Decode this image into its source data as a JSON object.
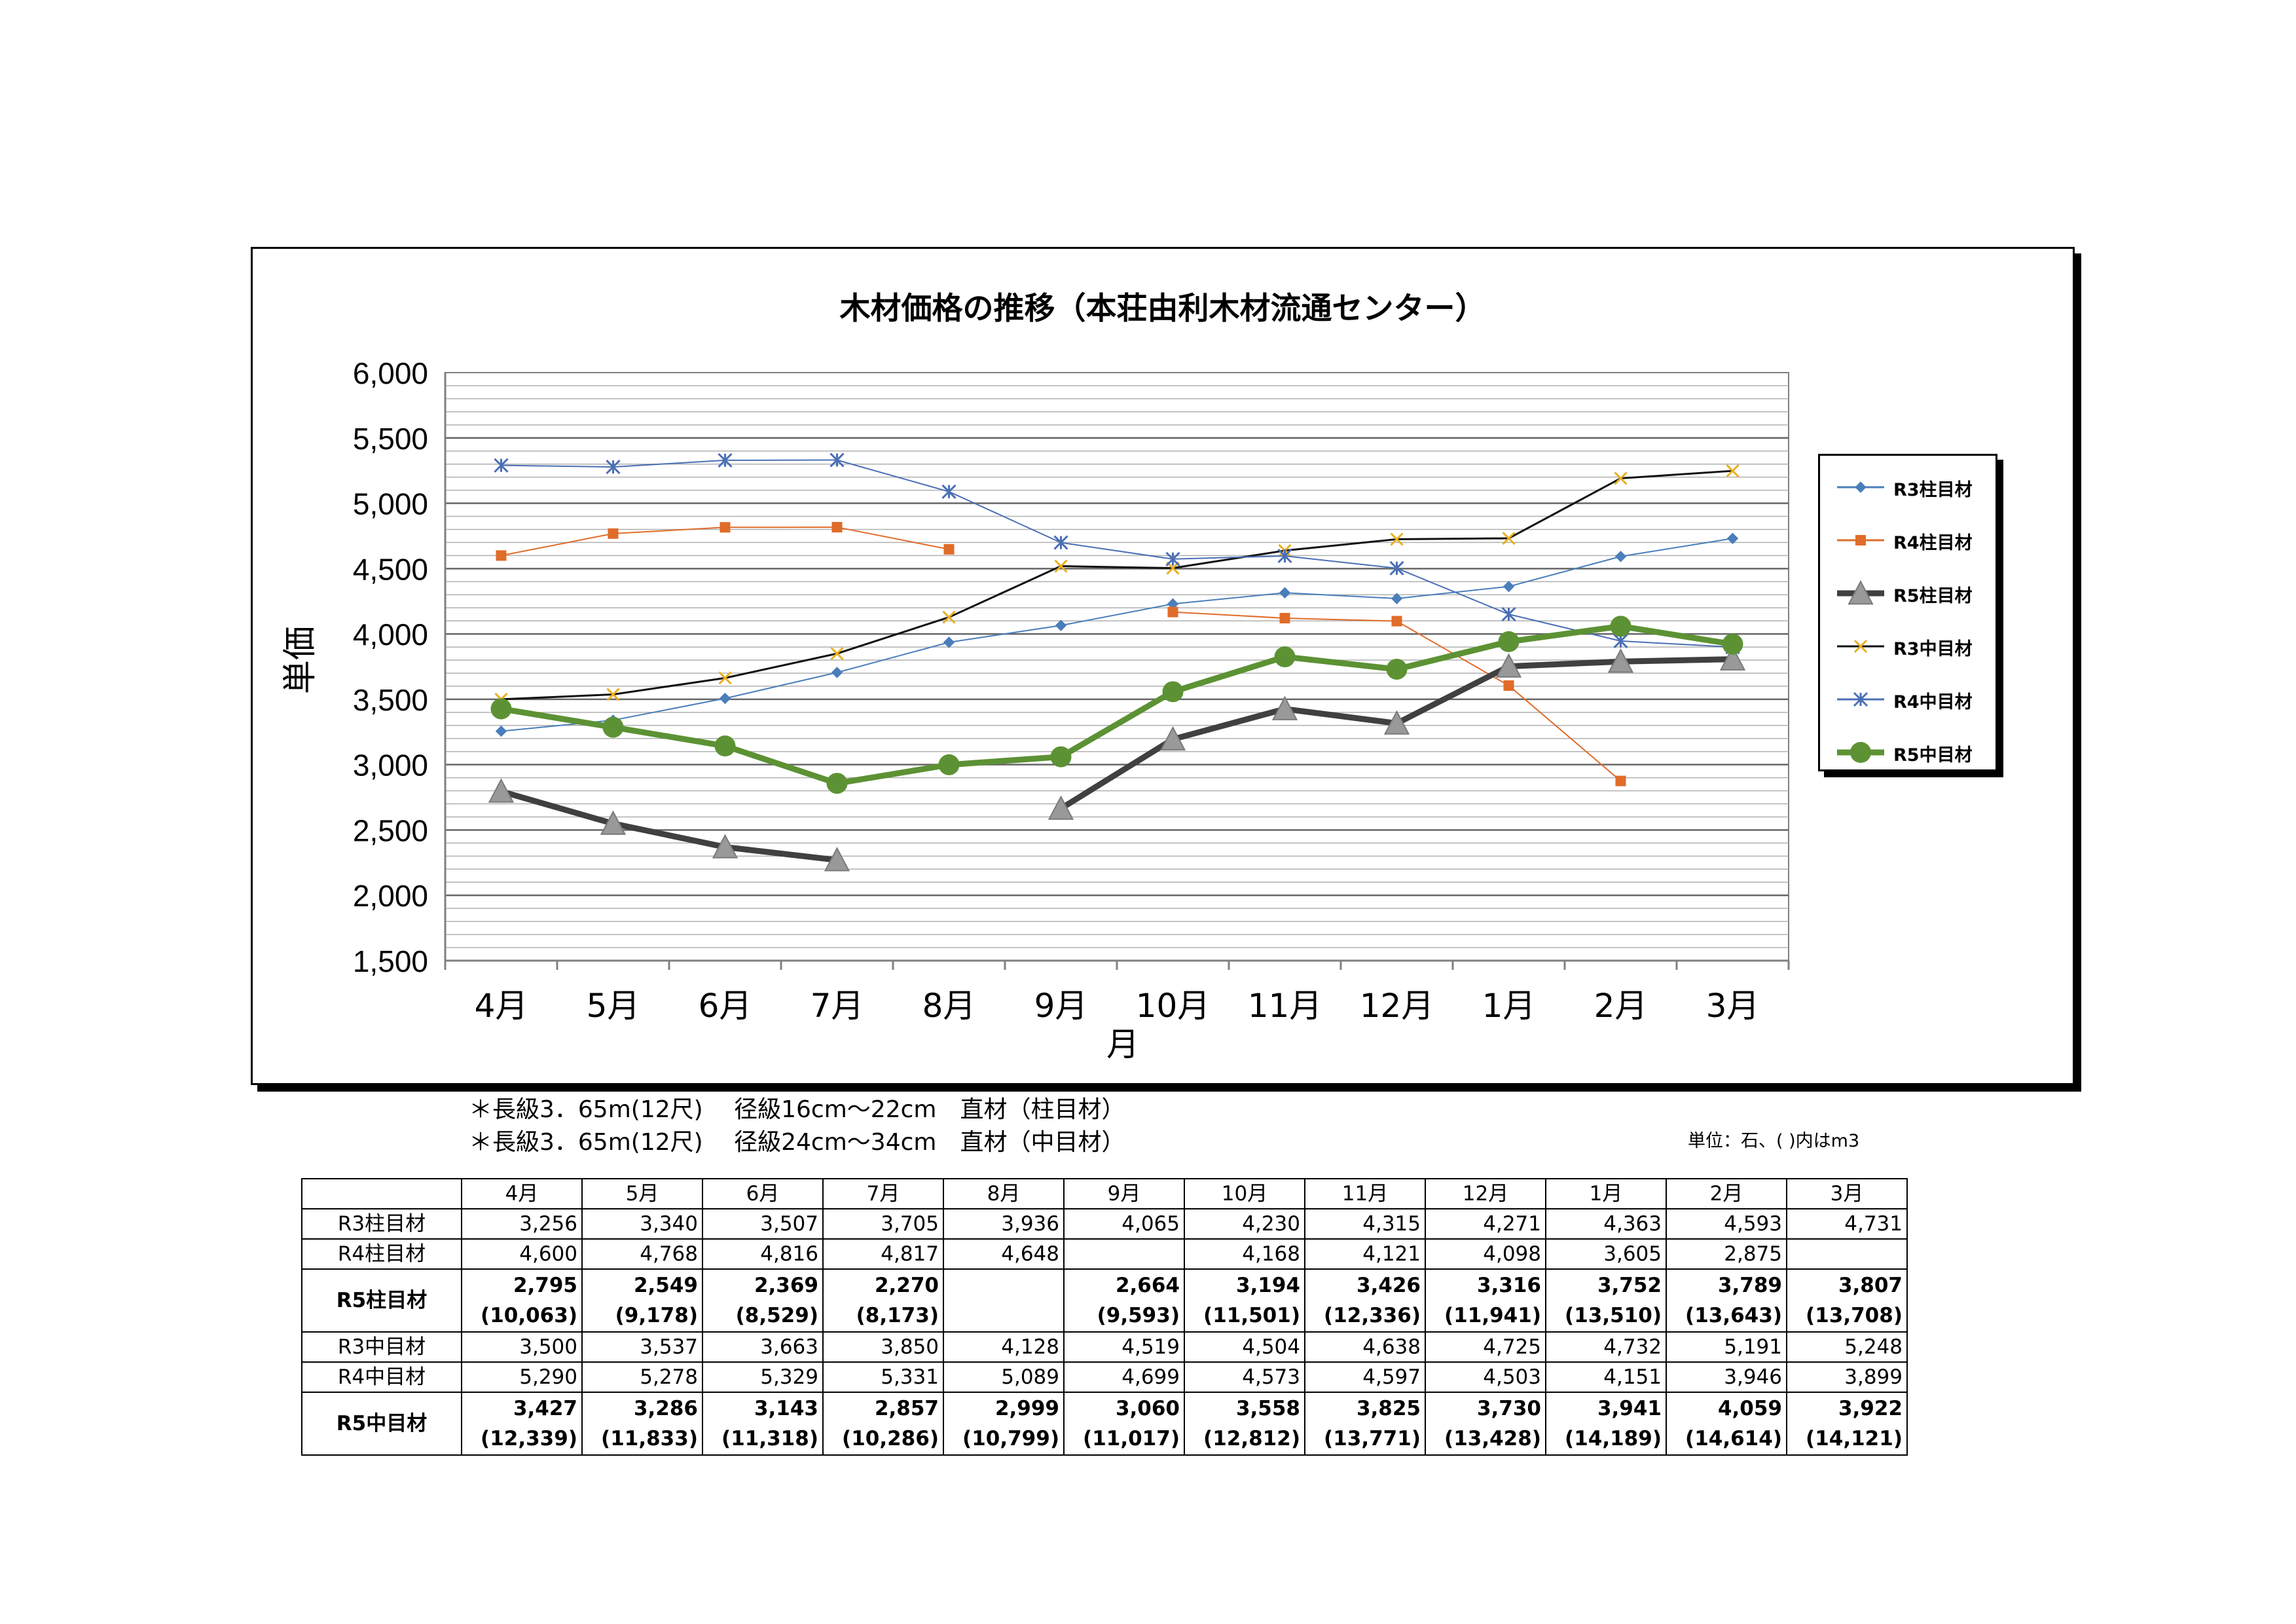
{
  "chart_data": {
    "type": "line",
    "title": "木材価格の推移（本荘由利木材流通センター）",
    "xlabel": "月",
    "ylabel": "単価",
    "categories": [
      "4月",
      "5月",
      "6月",
      "7月",
      "8月",
      "9月",
      "10月",
      "11月",
      "12月",
      "1月",
      "2月",
      "3月"
    ],
    "ylim": [
      1500,
      6000
    ],
    "yticks": [
      "1,500",
      "2,000",
      "2,500",
      "3,000",
      "3,500",
      "4,000",
      "4,500",
      "5,000",
      "5,500",
      "6,000"
    ],
    "grid": true,
    "legend": "right",
    "series": [
      {
        "name": "R3柱目材",
        "color": "#4a7ebb",
        "marker": "diamond",
        "width": 2,
        "values": [
          3256,
          3340,
          3507,
          3705,
          3936,
          4065,
          4230,
          4315,
          4271,
          4363,
          4593,
          4731
        ]
      },
      {
        "name": "R4柱目材",
        "color": "#e06c2a",
        "marker": "square",
        "width": 2,
        "values": [
          4600,
          4768,
          4816,
          4817,
          4648,
          null,
          4168,
          4121,
          4098,
          3605,
          2875,
          null
        ]
      },
      {
        "name": "R5柱目材",
        "color": "#404040",
        "marker": "triangle",
        "width": 9,
        "values": [
          2795,
          2549,
          2369,
          2270,
          null,
          2664,
          3194,
          3426,
          3316,
          3752,
          3789,
          3807
        ]
      },
      {
        "name": "R3中目材",
        "color": "#111111",
        "marker": "x",
        "width": 3,
        "values": [
          3500,
          3537,
          3663,
          3850,
          4128,
          4519,
          4504,
          4638,
          4725,
          4732,
          5191,
          5248
        ]
      },
      {
        "name": "R4中目材",
        "color": "#4a6fb5",
        "marker": "star",
        "width": 2,
        "values": [
          5290,
          5278,
          5329,
          5331,
          5089,
          4699,
          4573,
          4597,
          4503,
          4151,
          3946,
          3899
        ]
      },
      {
        "name": "R5中目材",
        "color": "#5c9234",
        "marker": "circle",
        "width": 9,
        "values": [
          3427,
          3286,
          3143,
          2857,
          2999,
          3060,
          3558,
          3825,
          3730,
          3941,
          4059,
          3922
        ]
      }
    ]
  },
  "notes": {
    "line1": "＊長級3．65m(12尺)　 径級16cm～22cm　直材（柱目材）",
    "line2": "＊長級3．65m(12尺)　 径級24cm～34cm　直材（中目材）",
    "unit": "単位：石、(  )内はm3"
  },
  "table": {
    "months": [
      "4月",
      "5月",
      "6月",
      "7月",
      "8月",
      "9月",
      "10月",
      "11月",
      "12月",
      "1月",
      "2月",
      "3月"
    ],
    "rows": [
      {
        "label": "R3柱目材",
        "values": [
          "3,256",
          "3,340",
          "3,507",
          "3,705",
          "3,936",
          "4,065",
          "4,230",
          "4,315",
          "4,271",
          "4,363",
          "4,593",
          "4,731"
        ]
      },
      {
        "label": "R4柱目材",
        "values": [
          "4,600",
          "4,768",
          "4,816",
          "4,817",
          "4,648",
          "",
          "4,168",
          "4,121",
          "4,098",
          "3,605",
          "2,875",
          ""
        ]
      },
      {
        "label": "R5柱目材",
        "bold": true,
        "values": [
          "2,795",
          "2,549",
          "2,369",
          "2,270",
          "",
          "2,664",
          "3,194",
          "3,426",
          "3,316",
          "3,752",
          "3,789",
          "3,807"
        ],
        "m3": [
          "(10,063)",
          "(9,178)",
          "(8,529)",
          "(8,173)",
          "",
          "(9,593)",
          "(11,501)",
          "(12,336)",
          "(11,941)",
          "(13,510)",
          "(13,643)",
          "(13,708)"
        ]
      },
      {
        "label": "R3中目材",
        "values": [
          "3,500",
          "3,537",
          "3,663",
          "3,850",
          "4,128",
          "4,519",
          "4,504",
          "4,638",
          "4,725",
          "4,732",
          "5,191",
          "5,248"
        ]
      },
      {
        "label": "R4中目材",
        "values": [
          "5,290",
          "5,278",
          "5,329",
          "5,331",
          "5,089",
          "4,699",
          "4,573",
          "4,597",
          "4,503",
          "4,151",
          "3,946",
          "3,899"
        ]
      },
      {
        "label": "R5中目材",
        "bold": true,
        "values": [
          "3,427",
          "3,286",
          "3,143",
          "2,857",
          "2,999",
          "3,060",
          "3,558",
          "3,825",
          "3,730",
          "3,941",
          "4,059",
          "3,922"
        ],
        "m3": [
          "(12,339)",
          "(11,833)",
          "(11,318)",
          "(10,286)",
          "(10,799)",
          "(11,017)",
          "(12,812)",
          "(13,771)",
          "(13,428)",
          "(14,189)",
          "(14,614)",
          "(14,121)"
        ]
      }
    ]
  }
}
